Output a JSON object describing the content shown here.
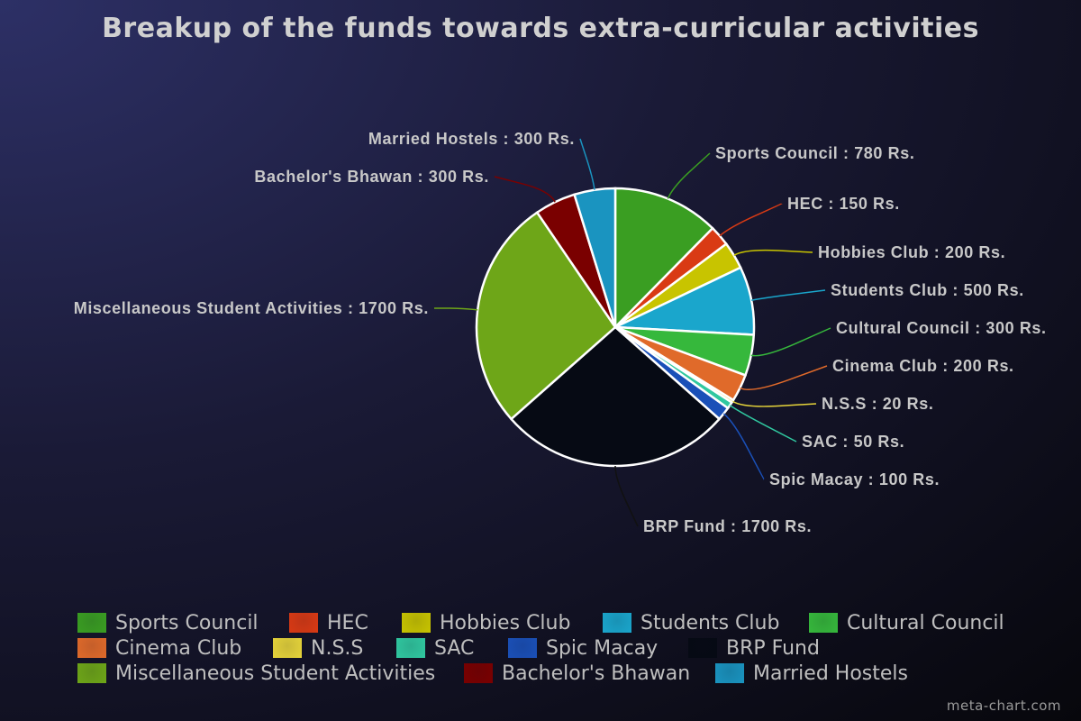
{
  "chart_data": {
    "type": "pie",
    "title": "Breakup of the funds towards extra-curricular activities",
    "unit": "Rs.",
    "start_angle": "12 o'clock, clockwise",
    "legend_placement": "bottom",
    "slices": [
      {
        "label": "Sports Council",
        "value": 780,
        "color": "#3a9e22",
        "text": "Sports Council : 780 Rs."
      },
      {
        "label": "HEC",
        "value": 150,
        "color": "#d93a14",
        "text": "HEC : 150 Rs."
      },
      {
        "label": "Hobbies Club",
        "value": 200,
        "color": "#c8c400",
        "text": "Hobbies Club : 200 Rs."
      },
      {
        "label": "Students Club",
        "value": 500,
        "color": "#1aa6cc",
        "text": "Students Club : 500 Rs."
      },
      {
        "label": "Cultural Council",
        "value": 300,
        "color": "#36b83c",
        "text": "Cultural Council : 300 Rs."
      },
      {
        "label": "Cinema Club",
        "value": 200,
        "color": "#e06a2a",
        "text": "Cinema Club : 200 Rs."
      },
      {
        "label": "N.S.S",
        "value": 20,
        "color": "#e6d43a",
        "text": "N.S.S : 20 Rs."
      },
      {
        "label": "SAC",
        "value": 50,
        "color": "#30c8a0",
        "text": "SAC : 50 Rs."
      },
      {
        "label": "Spic Macay",
        "value": 100,
        "color": "#1a50b8",
        "text": "Spic Macay : 100 Rs."
      },
      {
        "label": "BRP Fund",
        "value": 1700,
        "color": "#060a14",
        "text": "BRP Fund : 1700 Rs."
      },
      {
        "label": "Miscellaneous Student Activities",
        "value": 1700,
        "color": "#6ea618",
        "text": "Miscellaneous Student Activities : 1700 Rs."
      },
      {
        "label": "Bachelor's Bhawan",
        "value": 300,
        "color": "#7a0000",
        "text": "Bachelor's Bhawan : 300 Rs."
      },
      {
        "label": "Married Hostels",
        "value": 300,
        "color": "#1a94c0",
        "text": "Married Hostels : 300 Rs."
      }
    ]
  },
  "credit": "meta-chart.com"
}
